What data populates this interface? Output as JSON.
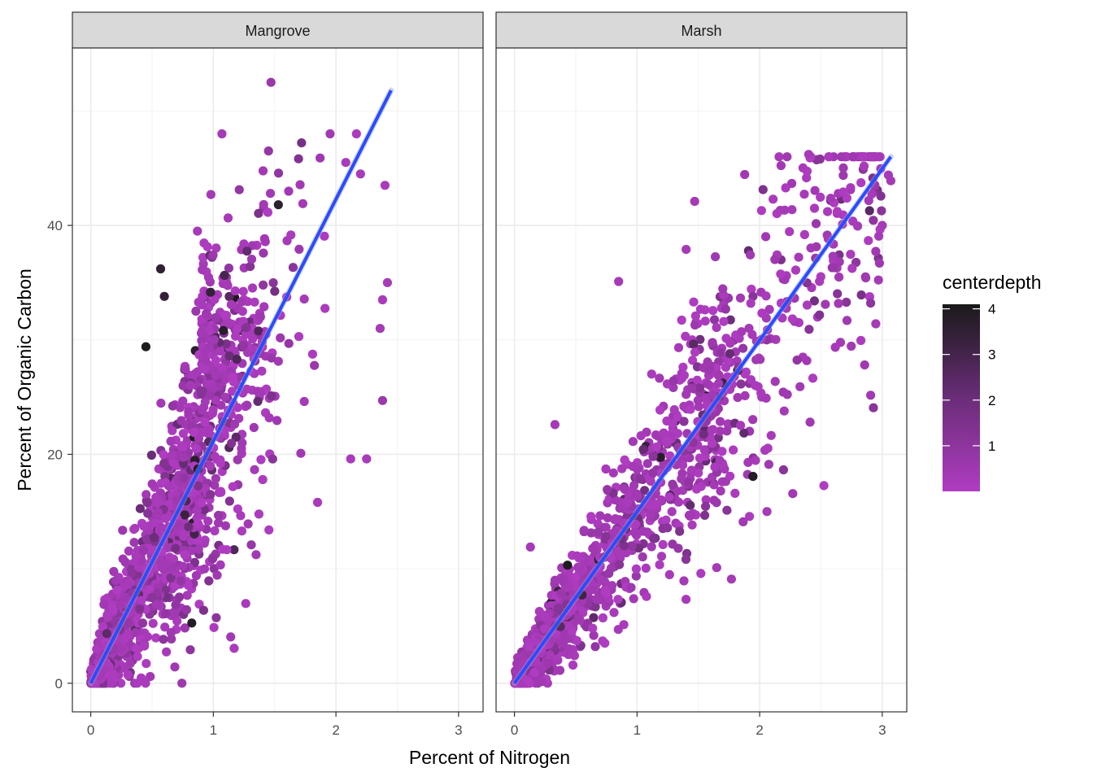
{
  "chart_data": {
    "type": "scatter",
    "xlabel": "Percent of Nitrogen",
    "ylabel": "Percent of Organic Carbon",
    "xlim": [
      -0.15,
      3.2
    ],
    "ylim": [
      -2.5,
      55.5
    ],
    "x_ticks": [
      0,
      1,
      2,
      3
    ],
    "y_ticks": [
      0,
      20,
      40
    ],
    "x_tick_labels": [
      "0",
      "1",
      "2",
      "3"
    ],
    "y_tick_labels": [
      "0",
      "20",
      "40"
    ],
    "grid": true,
    "facets": [
      {
        "name": "Mangrove",
        "fit_line": {
          "x": [
            0,
            2.45
          ],
          "y": [
            0,
            51.8
          ]
        },
        "highlight_points": [
          {
            "x": 1.47,
            "y": 52.5,
            "depth": 0.6
          },
          {
            "x": 1.45,
            "y": 46.5,
            "depth": 0.8
          },
          {
            "x": 1.53,
            "y": 41.8,
            "depth": 3.6
          },
          {
            "x": 0.57,
            "y": 36.2,
            "depth": 3.5
          },
          {
            "x": 0.6,
            "y": 33.8,
            "depth": 3.4
          },
          {
            "x": 0.45,
            "y": 29.4,
            "depth": 4.0
          },
          {
            "x": 2.08,
            "y": 45.5,
            "depth": 0.2
          },
          {
            "x": 2.2,
            "y": 44.5,
            "depth": 0.2
          },
          {
            "x": 2.4,
            "y": 43.5,
            "depth": 0.2
          },
          {
            "x": 2.42,
            "y": 35.0,
            "depth": 0.2
          },
          {
            "x": 2.38,
            "y": 33.5,
            "depth": 0.2
          },
          {
            "x": 2.36,
            "y": 31.0,
            "depth": 0.3
          },
          {
            "x": 2.38,
            "y": 24.7,
            "depth": 0.6
          },
          {
            "x": 2.25,
            "y": 19.6,
            "depth": 0.2
          },
          {
            "x": 2.12,
            "y": 19.6,
            "depth": 0.2
          },
          {
            "x": 1.85,
            "y": 15.8,
            "depth": 0.2
          },
          {
            "x": 0.98,
            "y": 42.7,
            "depth": 0.3
          },
          {
            "x": 0.87,
            "y": 39.5,
            "depth": 0.3
          }
        ]
      },
      {
        "name": "Marsh",
        "fit_line": {
          "x": [
            0,
            3.07
          ],
          "y": [
            0,
            46.0
          ]
        },
        "highlight_points": [
          {
            "x": 2.4,
            "y": 46.2,
            "depth": 0.3
          },
          {
            "x": 3.05,
            "y": 44.4,
            "depth": 0.3
          },
          {
            "x": 3.07,
            "y": 43.9,
            "depth": 0.3
          },
          {
            "x": 1.47,
            "y": 42.1,
            "depth": 0.3
          },
          {
            "x": 3.0,
            "y": 40.0,
            "depth": 0.3
          },
          {
            "x": 1.4,
            "y": 37.9,
            "depth": 0.3
          },
          {
            "x": 0.85,
            "y": 35.1,
            "depth": 0.3
          },
          {
            "x": 0.33,
            "y": 22.6,
            "depth": 0.3
          },
          {
            "x": 0.13,
            "y": 11.9,
            "depth": 0.3
          },
          {
            "x": 1.77,
            "y": 9.1,
            "depth": 0.3
          },
          {
            "x": 1.65,
            "y": 10.1,
            "depth": 0.3
          },
          {
            "x": 2.06,
            "y": 15.0,
            "depth": 0.3
          }
        ]
      }
    ],
    "legend": {
      "title": "centerdepth",
      "labels": [
        "4",
        "3",
        "2",
        "1"
      ],
      "values": [
        4,
        3,
        2,
        1
      ],
      "range": [
        0,
        4.1
      ],
      "position": "right",
      "low_color": "#b03cc2",
      "high_color": "#1a1a1a"
    },
    "colors": {
      "fit_line": "#2a4bff",
      "strip_fill": "#d9d9d9",
      "grid": "#ebebeb",
      "panel_border": "#333333"
    }
  }
}
